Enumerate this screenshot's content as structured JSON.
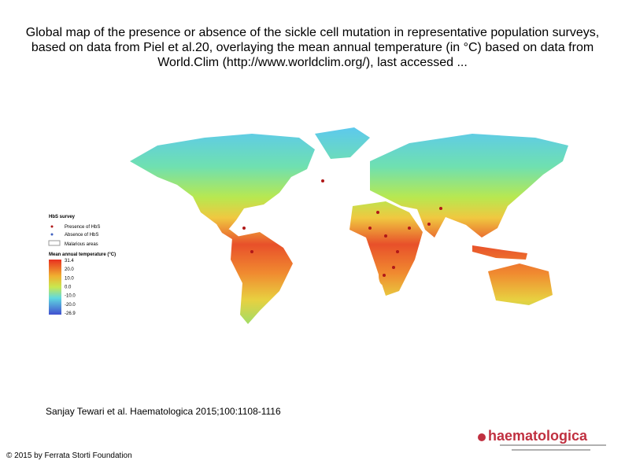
{
  "header": {
    "title": "Global map of the presence or absence of the sickle cell mutation in representative population surveys, based on data from Piel et al.20, overlaying the mean annual temperature (in °C) based on data from World.Clim (http://www.worldclim.org/), last accessed ..."
  },
  "legend": {
    "survey_title": "HbS survey",
    "presence": "Presence of HbS",
    "absence": "Absence of HbS",
    "malarious": "Malarious areas",
    "temperature_title": "Mean annual temperature (°C)",
    "scale_labels": [
      "31.4",
      "20.0",
      "10.0",
      "0.0",
      "-10.0",
      "-20.0",
      "-26.9"
    ]
  },
  "citation": "Sanjay Tewari et al. Haematologica 2015;100:1108-1116",
  "copyright": "© 2015 by Ferrata Storti Foundation",
  "logo": "haematologica"
}
